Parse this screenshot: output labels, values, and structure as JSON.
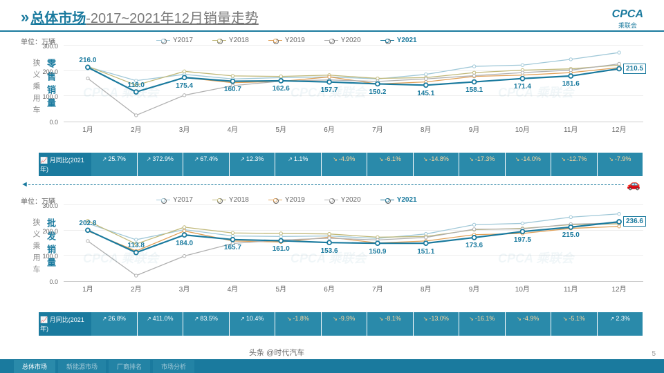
{
  "header": {
    "title_main": "总体市场",
    "title_sub": "-2017~2021年12月销量走势"
  },
  "logo": {
    "main": "CPCA",
    "sub": "乘联会"
  },
  "unit_label": "单位：万辆",
  "side_label_prefix": "狭义乘用车",
  "months": [
    "1月",
    "2月",
    "3月",
    "4月",
    "5月",
    "6月",
    "7月",
    "8月",
    "9月",
    "10月",
    "11月",
    "12月"
  ],
  "y_ticks": [
    "0.0",
    "100.0",
    "200.0",
    "300.0"
  ],
  "ylim": [
    0,
    300
  ],
  "legend": [
    {
      "label": "Y2017",
      "color": "#a0c8d8"
    },
    {
      "label": "Y2018",
      "color": "#c0b878"
    },
    {
      "label": "Y2019",
      "color": "#e0a058"
    },
    {
      "label": "Y2020",
      "color": "#b0b0b0"
    },
    {
      "label": "Y2021",
      "color": "#1a7a9e",
      "bold": true
    }
  ],
  "chart1": {
    "title": "零售销量",
    "series": {
      "Y2017": [
        218,
        163,
        188,
        170,
        175,
        178,
        170,
        188,
        220,
        225,
        248,
        275
      ],
      "Y2018": [
        220,
        145,
        200,
        182,
        180,
        185,
        172,
        175,
        195,
        205,
        210,
        225
      ],
      "Y2019": [
        215,
        118,
        175,
        155,
        160,
        178,
        150,
        158,
        180,
        185,
        195,
        215
      ],
      "Y2020": [
        172,
        25,
        105,
        143,
        161,
        166,
        160,
        170,
        183,
        195,
        205,
        230
      ],
      "Y2021": [
        216.0,
        118.0,
        175.4,
        160.7,
        162.6,
        157.7,
        150.2,
        145.1,
        158.1,
        171.4,
        181.6,
        210.5
      ]
    },
    "labels_2021": [
      216.0,
      118.0,
      175.4,
      160.7,
      162.6,
      157.7,
      150.2,
      145.1,
      158.1,
      171.4,
      181.6,
      210.5
    ],
    "end_label": "210.5",
    "yoy_label": "月同比(2021年)",
    "yoy": [
      {
        "v": "25.7%",
        "d": "up"
      },
      {
        "v": "372.9%",
        "d": "up"
      },
      {
        "v": "67.4%",
        "d": "up"
      },
      {
        "v": "12.3%",
        "d": "up"
      },
      {
        "v": "1.1%",
        "d": "up"
      },
      {
        "v": "-4.9%",
        "d": "down"
      },
      {
        "v": "-6.1%",
        "d": "down"
      },
      {
        "v": "-14.8%",
        "d": "down"
      },
      {
        "v": "-17.3%",
        "d": "down"
      },
      {
        "v": "-14.0%",
        "d": "down"
      },
      {
        "v": "-12.7%",
        "d": "down"
      },
      {
        "v": "-7.9%",
        "d": "down"
      }
    ]
  },
  "chart2": {
    "title": "批发销量",
    "series": {
      "Y2017": [
        230,
        165,
        205,
        180,
        178,
        180,
        170,
        188,
        225,
        230,
        255,
        268
      ],
      "Y2018": [
        240,
        148,
        215,
        192,
        190,
        188,
        175,
        178,
        205,
        210,
        225,
        228
      ],
      "Y2019": [
        200,
        120,
        200,
        160,
        156,
        175,
        152,
        160,
        185,
        190,
        210,
        218
      ],
      "Y2020": [
        160,
        22,
        100,
        150,
        164,
        171,
        164,
        174,
        207,
        208,
        227,
        232
      ],
      "Y2021": [
        202.8,
        113.8,
        184.0,
        165.7,
        161.0,
        153.6,
        150.9,
        151.1,
        173.6,
        197.5,
        215.0,
        236.6
      ]
    },
    "labels_2021": [
      202.8,
      113.8,
      184.0,
      165.7,
      161.0,
      153.6,
      150.9,
      151.1,
      173.6,
      197.5,
      215.0,
      236.6
    ],
    "end_label": "236.6",
    "yoy_label": "月同比(2021年)",
    "yoy": [
      {
        "v": "26.8%",
        "d": "up"
      },
      {
        "v": "411.0%",
        "d": "up"
      },
      {
        "v": "83.5%",
        "d": "up"
      },
      {
        "v": "10.4%",
        "d": "up"
      },
      {
        "v": "-1.8%",
        "d": "down"
      },
      {
        "v": "-9.9%",
        "d": "down"
      },
      {
        "v": "-8.1%",
        "d": "down"
      },
      {
        "v": "-13.0%",
        "d": "down"
      },
      {
        "v": "-16.1%",
        "d": "down"
      },
      {
        "v": "-4.9%",
        "d": "down"
      },
      {
        "v": "-5.1%",
        "d": "down"
      },
      {
        "v": "2.3%",
        "d": "up"
      }
    ]
  },
  "footer_tabs": [
    "总体市场",
    "新能源市场",
    "厂商排名",
    "市场分析"
  ],
  "page_num": "5",
  "source": "头条 @时代汽车",
  "colors": {
    "primary": "#1a7a9e",
    "bar_bg": "#2a8aaa",
    "grid": "#eeeeee"
  }
}
